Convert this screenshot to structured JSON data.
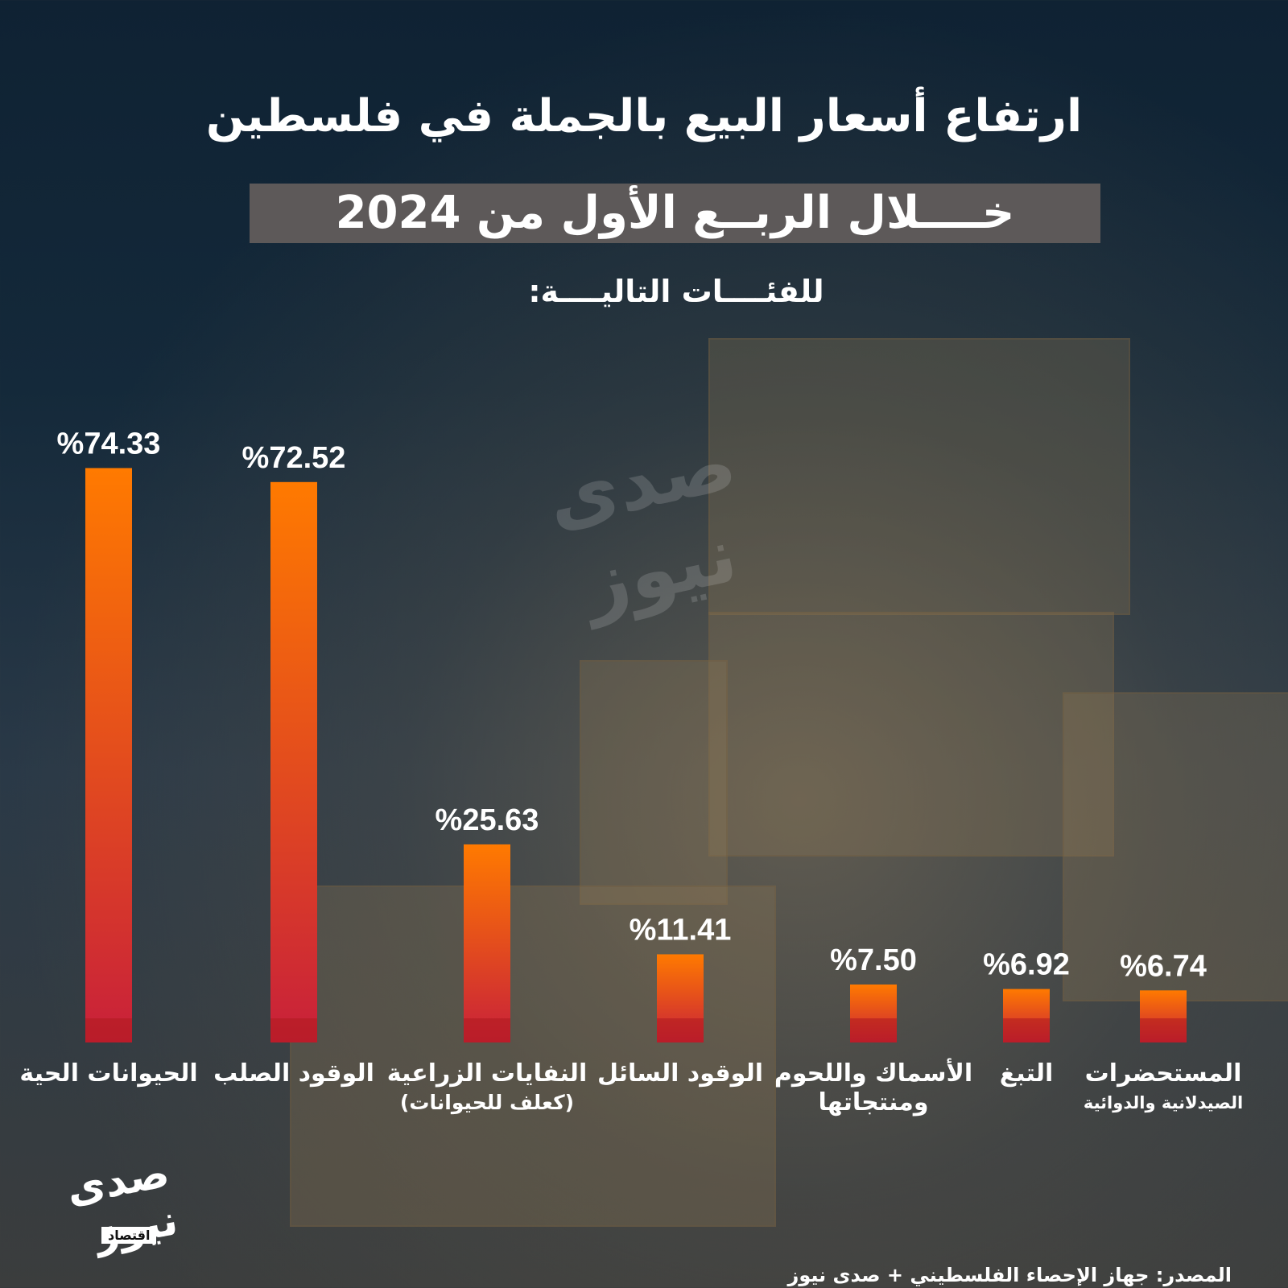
{
  "header": {
    "title": "ارتفاع أسعار البيع بالجملة في فلسطين",
    "subtitle": "خــــلال الربــع الأول من 2024",
    "categories_intro": "للفئــــات التاليــــة:"
  },
  "colors": {
    "bar_top": "#ff7a00",
    "bar_bottom": "#c8203a",
    "subtitle_band": "#5d5959"
  },
  "chart_data": {
    "type": "bar",
    "categories": [
      "الحيوانات الحية",
      "الوقود الصلب",
      "النفايات الزراعية (كعلف للحيوانات)",
      "الوقود السائل",
      "الأسماك واللحوم ومنتجاتها",
      "التبغ",
      "المستحضرات الصيدلانية والدوائية"
    ],
    "values": [
      74.33,
      72.52,
      25.63,
      11.41,
      7.5,
      6.92,
      6.74
    ],
    "value_labels": [
      "%74.33",
      "%72.52",
      "%25.63",
      "%11.41",
      "%7.50",
      "%6.92",
      "%6.74"
    ],
    "category_labels": [
      {
        "main": "الحيوانات الحية",
        "sub": ""
      },
      {
        "main": "الوقود الصلب",
        "sub": ""
      },
      {
        "main": "النفايات الزراعية",
        "sub": "(كعلف للحيوانات)"
      },
      {
        "main": "الوقود السائل",
        "sub": ""
      },
      {
        "main": "الأسماك واللحوم",
        "sub": "ومنتجاتها"
      },
      {
        "main": "التبغ",
        "sub": ""
      },
      {
        "main": "المستحضرات",
        "sub": "الصيدلانية والدوائية"
      }
    ],
    "grid": false,
    "legend": "none"
  },
  "branding": {
    "logo_text": "صدى نيوز",
    "logo_sub": "اقتصاد",
    "watermark": "صدى نيوز"
  },
  "source": "المصدر: جهاز الإحصاء الفلسطيني + صدى نيوز"
}
